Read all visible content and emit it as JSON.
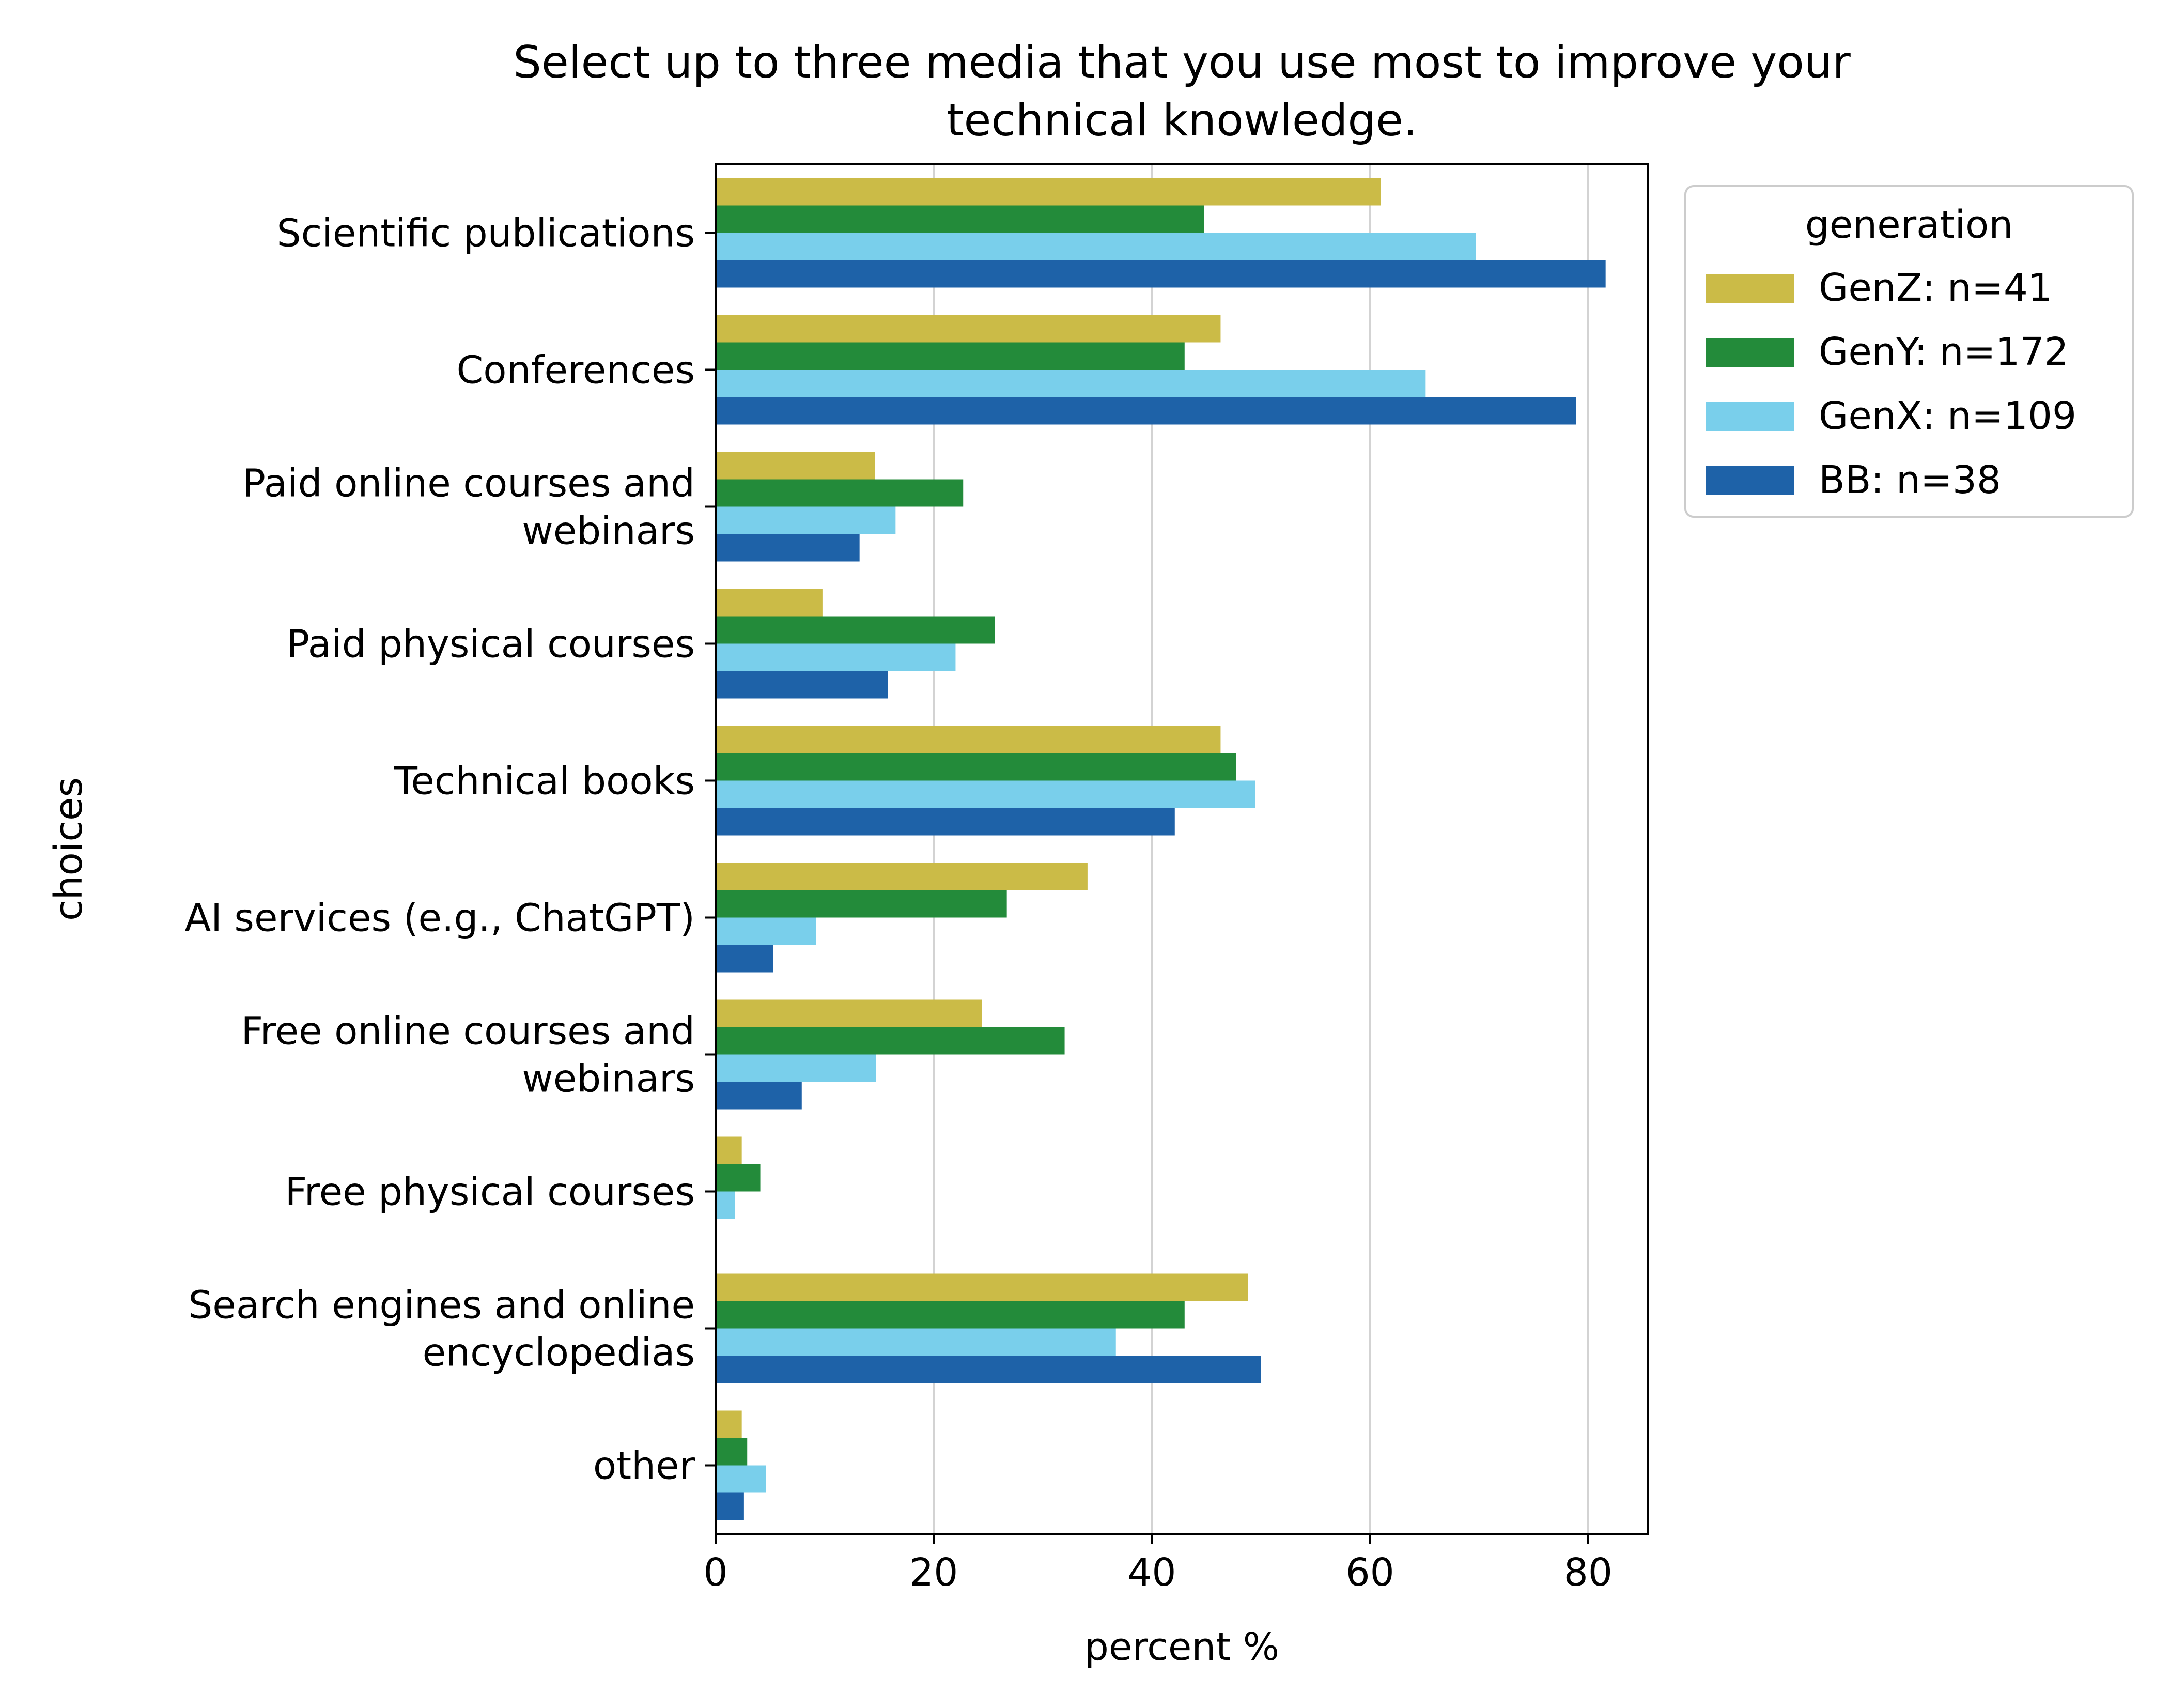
{
  "chart_data": {
    "type": "bar",
    "orientation": "horizontal",
    "title": "Select up to three media that you use most to improve your technical knowledge.",
    "title_lines": [
      "Select up to three media that you use most to improve your",
      "technical knowledge."
    ],
    "xlabel": "percent %",
    "ylabel": "choices",
    "xlim": [
      0,
      85.5
    ],
    "xticks": [
      0,
      20,
      40,
      60,
      80
    ],
    "grid": "x",
    "legend": {
      "title": "generation",
      "placement": "outside-top-right"
    },
    "categories": [
      "Scientific publications",
      "Conferences",
      "Paid online courses and webinars",
      "Paid physical courses",
      "Technical books",
      "AI services (e.g., ChatGPT)",
      "Free online courses and webinars",
      "Free physical courses",
      "Search engines and online encyclopedias",
      "other"
    ],
    "category_lines": [
      [
        "Scientific publications"
      ],
      [
        "Conferences"
      ],
      [
        "Paid online courses and",
        "webinars"
      ],
      [
        "Paid physical courses"
      ],
      [
        "Technical books"
      ],
      [
        "AI services (e.g., ChatGPT)"
      ],
      [
        "Free online courses and",
        "webinars"
      ],
      [
        "Free physical courses"
      ],
      [
        "Search engines and online",
        "encyclopedias"
      ],
      [
        "other"
      ]
    ],
    "series": [
      {
        "name": "GenZ: n=41",
        "color": "#CBBB47",
        "values": [
          61.0,
          46.3,
          14.6,
          9.8,
          46.3,
          34.1,
          24.4,
          2.4,
          48.8,
          2.4
        ]
      },
      {
        "name": "GenY: n=172",
        "color": "#238B3A",
        "values": [
          44.8,
          43.0,
          22.7,
          25.6,
          47.7,
          26.7,
          32.0,
          4.1,
          43.0,
          2.9
        ]
      },
      {
        "name": "GenX: n=109",
        "color": "#79CFEB",
        "values": [
          69.7,
          65.1,
          16.5,
          22.0,
          49.5,
          9.2,
          14.7,
          1.8,
          36.7,
          4.6
        ]
      },
      {
        "name": "BB: n=38",
        "color": "#1E62A8",
        "values": [
          81.6,
          78.9,
          13.2,
          15.8,
          42.1,
          5.3,
          7.9,
          0.0,
          50.0,
          2.6
        ]
      }
    ]
  }
}
